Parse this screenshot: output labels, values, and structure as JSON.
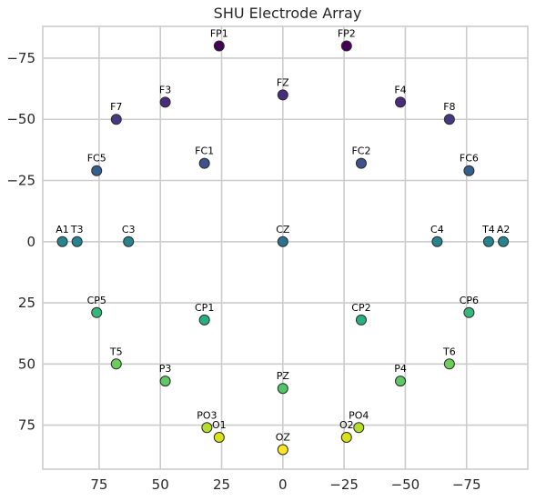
{
  "chart_data": {
    "type": "scatter",
    "title": "SHU Electrode Array",
    "xlabel": "",
    "ylabel": "",
    "xlim": [
      98,
      -100
    ],
    "ylim": [
      -88,
      93
    ],
    "x_ticks": [
      75,
      50,
      25,
      0,
      -25,
      -50,
      -75
    ],
    "x_tick_labels": [
      "75",
      "50",
      "25",
      "0",
      "−25",
      "−50",
      "−75"
    ],
    "y_ticks": [
      -75,
      -50,
      -25,
      0,
      25,
      50,
      75
    ],
    "y_tick_labels": [
      "−75",
      "−50",
      "−25",
      "0",
      "25",
      "50",
      "75"
    ],
    "grid": true,
    "colormap": "viridis",
    "points": [
      {
        "label": "FP1",
        "x": 26,
        "y": -80,
        "color": "#440154"
      },
      {
        "label": "FP2",
        "x": -26,
        "y": -80,
        "color": "#440154"
      },
      {
        "label": "FZ",
        "x": 0,
        "y": -60,
        "color": "#472d7b"
      },
      {
        "label": "F3",
        "x": 48,
        "y": -57,
        "color": "#472d7b"
      },
      {
        "label": "F4",
        "x": -48,
        "y": -57,
        "color": "#472d7b"
      },
      {
        "label": "F7",
        "x": 68,
        "y": -50,
        "color": "#443983"
      },
      {
        "label": "F8",
        "x": -68,
        "y": -50,
        "color": "#443983"
      },
      {
        "label": "FC1",
        "x": 32,
        "y": -32,
        "color": "#3b528b"
      },
      {
        "label": "FC2",
        "x": -32,
        "y": -32,
        "color": "#3b528b"
      },
      {
        "label": "FC5",
        "x": 76,
        "y": -29,
        "color": "#355f8d"
      },
      {
        "label": "FC6",
        "x": -76,
        "y": -29,
        "color": "#355f8d"
      },
      {
        "label": "A1",
        "x": 90,
        "y": 0,
        "color": "#25848e"
      },
      {
        "label": "T3",
        "x": 84,
        "y": 0,
        "color": "#25848e"
      },
      {
        "label": "C3",
        "x": 63,
        "y": 0,
        "color": "#25848e"
      },
      {
        "label": "CZ",
        "x": 0,
        "y": 0,
        "color": "#2c728e"
      },
      {
        "label": "C4",
        "x": -63,
        "y": 0,
        "color": "#25848e"
      },
      {
        "label": "T4",
        "x": -84,
        "y": 0,
        "color": "#25848e"
      },
      {
        "label": "A2",
        "x": -90,
        "y": 0,
        "color": "#25848e"
      },
      {
        "label": "CP5",
        "x": 76,
        "y": 29,
        "color": "#35b779"
      },
      {
        "label": "CP6",
        "x": -76,
        "y": 29,
        "color": "#35b779"
      },
      {
        "label": "CP1",
        "x": 32,
        "y": 32,
        "color": "#28ae80"
      },
      {
        "label": "CP2",
        "x": -32,
        "y": 32,
        "color": "#28ae80"
      },
      {
        "label": "T5",
        "x": 68,
        "y": 50,
        "color": "#6ccd5a"
      },
      {
        "label": "T6",
        "x": -68,
        "y": 50,
        "color": "#6ccd5a"
      },
      {
        "label": "P3",
        "x": 48,
        "y": 57,
        "color": "#5ec962"
      },
      {
        "label": "P4",
        "x": -48,
        "y": 57,
        "color": "#5ec962"
      },
      {
        "label": "PZ",
        "x": 0,
        "y": 60,
        "color": "#52c569"
      },
      {
        "label": "PO3",
        "x": 31,
        "y": 76,
        "color": "#b5de2b"
      },
      {
        "label": "PO4",
        "x": -31,
        "y": 76,
        "color": "#b5de2b"
      },
      {
        "label": "O1",
        "x": 26,
        "y": 80,
        "color": "#d8e219"
      },
      {
        "label": "O2",
        "x": -26,
        "y": 80,
        "color": "#d8e219"
      },
      {
        "label": "OZ",
        "x": 0,
        "y": 85,
        "color": "#fde725"
      }
    ]
  }
}
